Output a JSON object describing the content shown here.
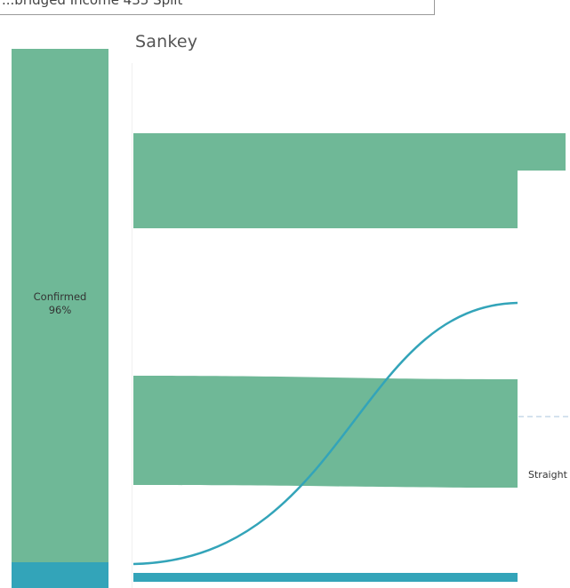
{
  "header": {
    "clipped_text": "...bridged Income 435 Split",
    "sheet_title": "Sankey"
  },
  "left_bar": {
    "main_segment": {
      "label": "Confirmed",
      "percent": "96%"
    },
    "colors": {
      "main": "#6fb897",
      "other": "#33a4b9"
    }
  },
  "flows": {
    "colors": {
      "band": "#6fb897",
      "curve": "#33a4b9",
      "dashed": "#a8c4dc"
    },
    "right_label": "Straight ("
  }
}
